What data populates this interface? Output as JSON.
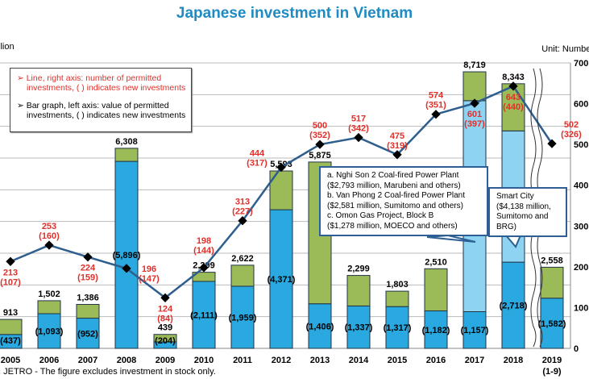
{
  "title": "Japanese investment in Vietnam",
  "left_unit": "llion",
  "right_unit": "Unit: Number",
  "source": ", JETRO - The figure excludes investment in stock only.",
  "legend": {
    "line": "Line, right axis: number of permitted investments, ( ) indicates new investments",
    "bar": "Bar graph, left axis: value of permitted investments, ( ) indicates new investments"
  },
  "callout_2017": [
    "a. Nghi Son 2 Coal-fired Power Plant",
    "($2,793 million, Marubeni and others)",
    "b. Van Phong 2 Coal-fired Power Plant",
    "($2,581 million, Sumitomo and others)",
    "c. Omon Gas Project, Block B",
    "($1,278 million, MOECO and others)"
  ],
  "callout_2018": [
    "Smart City",
    "($4,138 million,",
    "Sumitomo and BRG)"
  ],
  "colors": {
    "new": "#29a9e0",
    "large": "#8fd3f2",
    "expansion": "#9bbb59",
    "line": "#2e5e8e",
    "label_red": "#e0302a",
    "title": "#1e8bc3"
  },
  "chart_data": {
    "type": "bar+line",
    "title": "Japanese investment in Vietnam",
    "categories": [
      "2005",
      "2006",
      "2007",
      "2008",
      "2009",
      "2010",
      "2011",
      "2012",
      "2013",
      "2014",
      "2015",
      "2016",
      "2017",
      "2018",
      "2019"
    ],
    "category_sub": {
      "2019": "(1-9)"
    },
    "bar_total": [
      913,
      1502,
      1386,
      6308,
      439,
      2399,
      2622,
      5593,
      5875,
      2299,
      1803,
      2510,
      8719,
      8343,
      2558
    ],
    "bar_new": [
      437,
      1093,
      952,
      5896,
      204,
      2111,
      1959,
      4371,
      1406,
      1337,
      1317,
      1182,
      1157,
      2718,
      1582
    ],
    "bar_large_project": [
      0,
      0,
      0,
      0,
      0,
      0,
      0,
      0,
      0,
      0,
      0,
      0,
      6652,
      4138,
      0
    ],
    "line_total": [
      213,
      253,
      224,
      196,
      124,
      198,
      313,
      444,
      500,
      517,
      475,
      574,
      601,
      643,
      502
    ],
    "line_new": [
      107,
      160,
      159,
      147,
      84,
      144,
      227,
      317,
      352,
      342,
      319,
      351,
      397,
      440,
      326
    ],
    "left_ylim": [
      0,
      9000
    ],
    "right_ylim": [
      0,
      700
    ],
    "right_ticks": [
      "0",
      "100",
      "200",
      "300",
      "400",
      "500",
      "600",
      "700"
    ],
    "grid": true
  }
}
